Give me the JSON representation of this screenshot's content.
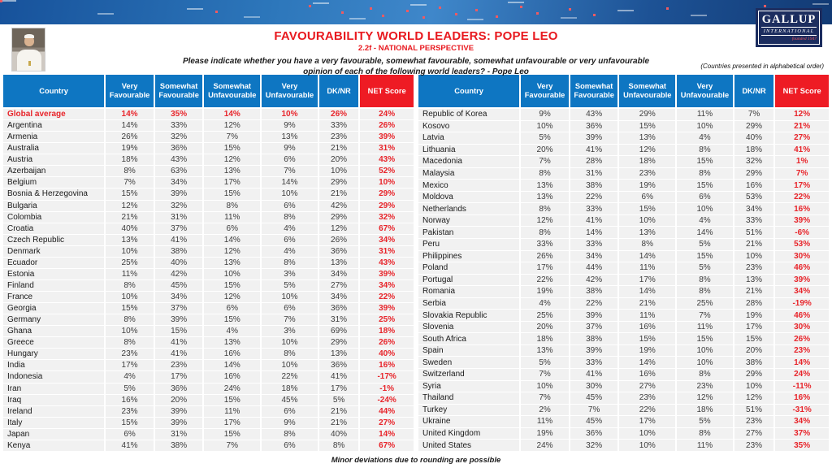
{
  "header": {
    "title": "FAVOURABILITY WORLD LEADERS: POPE LEO",
    "subtitle": "2.2f - NATIONAL PERSPECTIVE",
    "question_line1": "Please indicate whether you have a very favourable, somewhat favourable, somewhat unfavourable or very unfavourable",
    "question_line2": "opinion of each of the following world leaders? - Pope Leo",
    "order_note": "(Countries presented in alphabetical order)",
    "logo": {
      "name": "GALLUP",
      "sub": "INTERNATIONAL",
      "founded": "founded 1947"
    }
  },
  "icons": {
    "banner": "world-map-banner",
    "photo": "pope-photo"
  },
  "colors": {
    "header_blue": "#0e76c2",
    "net_red": "#ee1b24",
    "accent_red": "#e8252b",
    "row_gray": "#f1f1f1",
    "logo_navy": "#1c2d5f"
  },
  "footer": {
    "note": "Minor deviations due to rounding are possible"
  },
  "chart_data": {
    "type": "table",
    "title": "FAVOURABILITY WORLD LEADERS: POPE LEO",
    "columns": [
      "Country",
      "Very Favourable",
      "Somewhat Favourable",
      "Somewhat Unfavourable",
      "Very Unfavourable",
      "DK/NR",
      "NET Score"
    ],
    "tables": {
      "left": {
        "emphasize_first_row": true,
        "rows": [
          [
            "Global average",
            "14%",
            "35%",
            "14%",
            "10%",
            "26%",
            "24%"
          ],
          [
            "Argentina",
            "14%",
            "33%",
            "12%",
            "9%",
            "33%",
            "26%"
          ],
          [
            "Armenia",
            "26%",
            "32%",
            "7%",
            "13%",
            "23%",
            "39%"
          ],
          [
            "Australia",
            "19%",
            "36%",
            "15%",
            "9%",
            "21%",
            "31%"
          ],
          [
            "Austria",
            "18%",
            "43%",
            "12%",
            "6%",
            "20%",
            "43%"
          ],
          [
            "Azerbaijan",
            "8%",
            "63%",
            "13%",
            "7%",
            "10%",
            "52%"
          ],
          [
            "Belgium",
            "7%",
            "34%",
            "17%",
            "14%",
            "29%",
            "10%"
          ],
          [
            "Bosnia & Herzegovina",
            "15%",
            "39%",
            "15%",
            "10%",
            "21%",
            "29%"
          ],
          [
            "Bulgaria",
            "12%",
            "32%",
            "8%",
            "6%",
            "42%",
            "29%"
          ],
          [
            "Colombia",
            "21%",
            "31%",
            "11%",
            "8%",
            "29%",
            "32%"
          ],
          [
            "Croatia",
            "40%",
            "37%",
            "6%",
            "4%",
            "12%",
            "67%"
          ],
          [
            "Czech Republic",
            "13%",
            "41%",
            "14%",
            "6%",
            "26%",
            "34%"
          ],
          [
            "Denmark",
            "10%",
            "38%",
            "12%",
            "4%",
            "36%",
            "31%"
          ],
          [
            "Ecuador",
            "25%",
            "40%",
            "13%",
            "8%",
            "13%",
            "43%"
          ],
          [
            "Estonia",
            "11%",
            "42%",
            "10%",
            "3%",
            "34%",
            "39%"
          ],
          [
            "Finland",
            "8%",
            "45%",
            "15%",
            "5%",
            "27%",
            "34%"
          ],
          [
            "France",
            "10%",
            "34%",
            "12%",
            "10%",
            "34%",
            "22%"
          ],
          [
            "Georgia",
            "15%",
            "37%",
            "6%",
            "6%",
            "36%",
            "39%"
          ],
          [
            "Germany",
            "8%",
            "39%",
            "15%",
            "7%",
            "31%",
            "25%"
          ],
          [
            "Ghana",
            "10%",
            "15%",
            "4%",
            "3%",
            "69%",
            "18%"
          ],
          [
            "Greece",
            "8%",
            "41%",
            "13%",
            "10%",
            "29%",
            "26%"
          ],
          [
            "Hungary",
            "23%",
            "41%",
            "16%",
            "8%",
            "13%",
            "40%"
          ],
          [
            "India",
            "17%",
            "23%",
            "14%",
            "10%",
            "36%",
            "16%"
          ],
          [
            "Indonesia",
            "4%",
            "17%",
            "16%",
            "22%",
            "41%",
            "-17%"
          ],
          [
            "Iran",
            "5%",
            "36%",
            "24%",
            "18%",
            "17%",
            "-1%"
          ],
          [
            "Iraq",
            "16%",
            "20%",
            "15%",
            "45%",
            "5%",
            "-24%"
          ],
          [
            "Ireland",
            "23%",
            "39%",
            "11%",
            "6%",
            "21%",
            "44%"
          ],
          [
            "Italy",
            "15%",
            "39%",
            "17%",
            "9%",
            "21%",
            "27%"
          ],
          [
            "Japan",
            "6%",
            "31%",
            "15%",
            "8%",
            "40%",
            "14%"
          ],
          [
            "Kenya",
            "41%",
            "38%",
            "7%",
            "6%",
            "8%",
            "67%"
          ]
        ]
      },
      "right": {
        "emphasize_first_row": false,
        "rows": [
          [
            "Republic of Korea",
            "9%",
            "43%",
            "29%",
            "11%",
            "7%",
            "12%"
          ],
          [
            "Kosovo",
            "10%",
            "36%",
            "15%",
            "10%",
            "29%",
            "21%"
          ],
          [
            "Latvia",
            "5%",
            "39%",
            "13%",
            "4%",
            "40%",
            "27%"
          ],
          [
            "Lithuania",
            "20%",
            "41%",
            "12%",
            "8%",
            "18%",
            "41%"
          ],
          [
            "Macedonia",
            "7%",
            "28%",
            "18%",
            "15%",
            "32%",
            "1%"
          ],
          [
            "Malaysia",
            "8%",
            "31%",
            "23%",
            "8%",
            "29%",
            "7%"
          ],
          [
            "Mexico",
            "13%",
            "38%",
            "19%",
            "15%",
            "16%",
            "17%"
          ],
          [
            "Moldova",
            "13%",
            "22%",
            "6%",
            "6%",
            "53%",
            "22%"
          ],
          [
            "Netherlands",
            "8%",
            "33%",
            "15%",
            "10%",
            "34%",
            "16%"
          ],
          [
            "Norway",
            "12%",
            "41%",
            "10%",
            "4%",
            "33%",
            "39%"
          ],
          [
            "Pakistan",
            "8%",
            "14%",
            "13%",
            "14%",
            "51%",
            "-6%"
          ],
          [
            "Peru",
            "33%",
            "33%",
            "8%",
            "5%",
            "21%",
            "53%"
          ],
          [
            "Philippines",
            "26%",
            "34%",
            "14%",
            "15%",
            "10%",
            "30%"
          ],
          [
            "Poland",
            "17%",
            "44%",
            "11%",
            "5%",
            "23%",
            "46%"
          ],
          [
            "Portugal",
            "22%",
            "42%",
            "17%",
            "8%",
            "13%",
            "39%"
          ],
          [
            "Romania",
            "19%",
            "38%",
            "14%",
            "8%",
            "21%",
            "34%"
          ],
          [
            "Serbia",
            "4%",
            "22%",
            "21%",
            "25%",
            "28%",
            "-19%"
          ],
          [
            "Slovakia Republic",
            "25%",
            "39%",
            "11%",
            "7%",
            "19%",
            "46%"
          ],
          [
            "Slovenia",
            "20%",
            "37%",
            "16%",
            "11%",
            "17%",
            "30%"
          ],
          [
            "South Africa",
            "18%",
            "38%",
            "15%",
            "15%",
            "15%",
            "26%"
          ],
          [
            "Spain",
            "13%",
            "39%",
            "19%",
            "10%",
            "20%",
            "23%"
          ],
          [
            "Sweden",
            "5%",
            "33%",
            "14%",
            "10%",
            "38%",
            "14%"
          ],
          [
            "Switzerland",
            "7%",
            "41%",
            "16%",
            "8%",
            "29%",
            "24%"
          ],
          [
            "Syria",
            "10%",
            "30%",
            "27%",
            "23%",
            "10%",
            "-11%"
          ],
          [
            "Thailand",
            "7%",
            "45%",
            "23%",
            "12%",
            "12%",
            "16%"
          ],
          [
            "Turkey",
            "2%",
            "7%",
            "22%",
            "18%",
            "51%",
            "-31%"
          ],
          [
            "Ukraine",
            "11%",
            "45%",
            "17%",
            "5%",
            "23%",
            "34%"
          ],
          [
            "United Kingdom",
            "19%",
            "36%",
            "10%",
            "8%",
            "27%",
            "37%"
          ],
          [
            "United States",
            "24%",
            "32%",
            "10%",
            "11%",
            "23%",
            "35%"
          ]
        ]
      }
    }
  }
}
